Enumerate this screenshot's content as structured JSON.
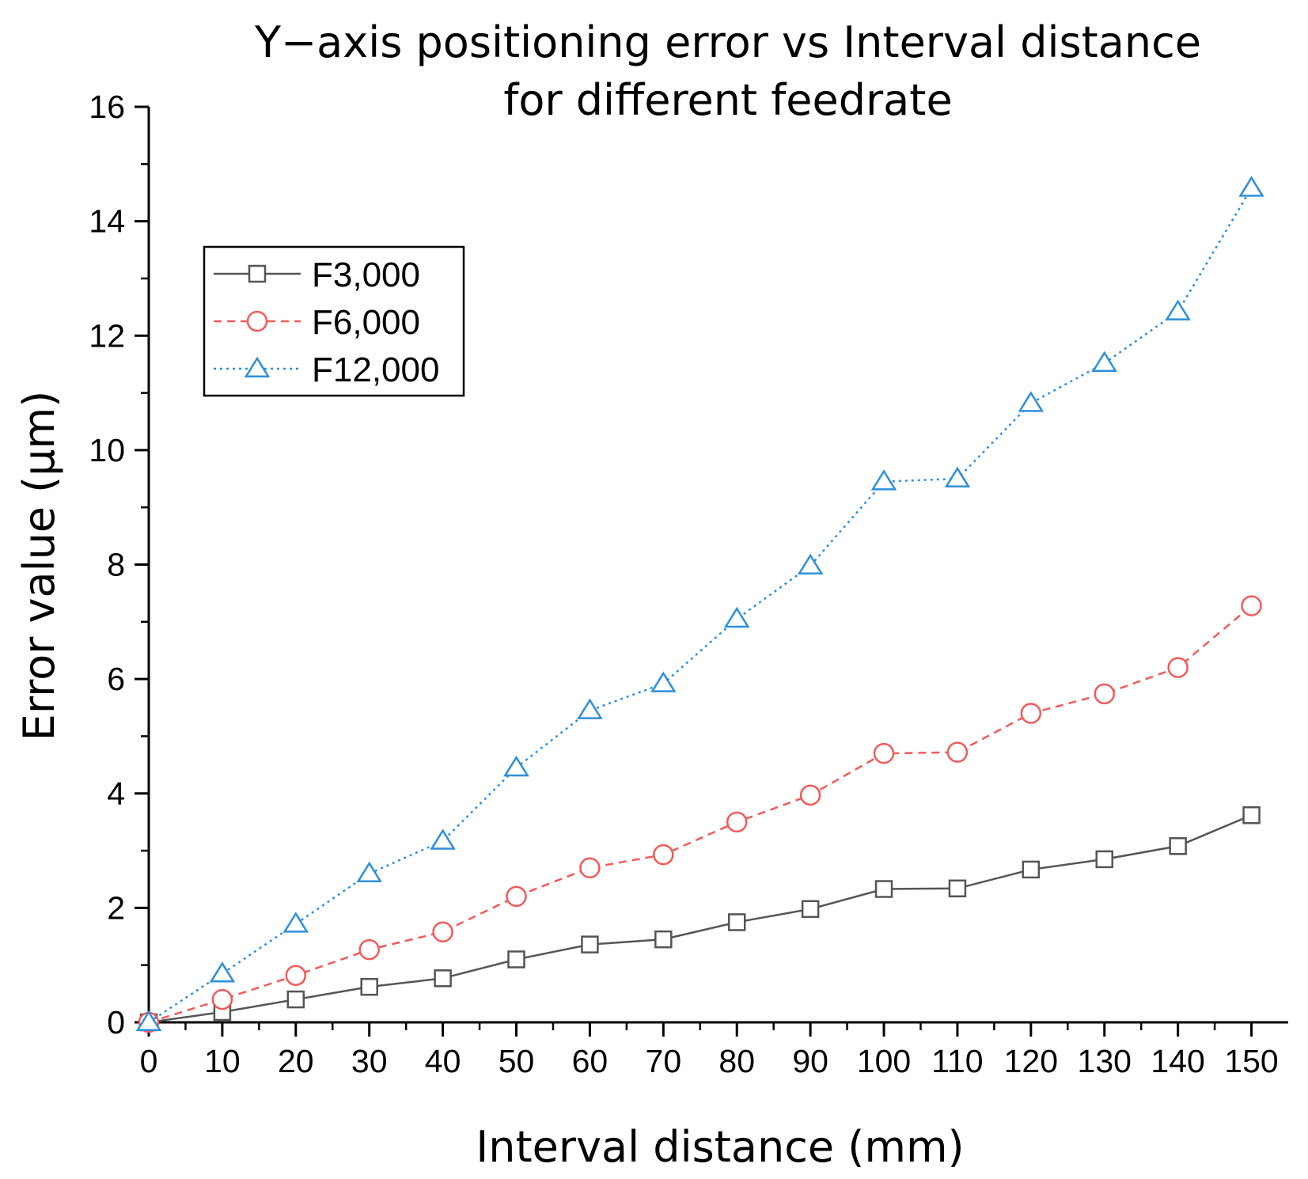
{
  "chart_data": {
    "type": "line",
    "title": "Y−axis positioning error vs Interval distance",
    "subtitle": "for different feedrate",
    "xlabel": "Interval distance (mm)",
    "ylabel": "Error value (µm)",
    "xlim": [
      0,
      155
    ],
    "ylim": [
      0,
      16
    ],
    "xticks": [
      0,
      10,
      20,
      30,
      40,
      50,
      60,
      70,
      80,
      90,
      100,
      110,
      120,
      130,
      140,
      150
    ],
    "yticks": [
      0,
      2,
      4,
      6,
      8,
      10,
      12,
      14,
      16
    ],
    "grid": false,
    "legend_position": "top-left",
    "x": [
      0,
      10,
      20,
      30,
      40,
      50,
      60,
      70,
      80,
      90,
      100,
      110,
      120,
      130,
      140,
      150
    ],
    "series": [
      {
        "name": "F3,000",
        "color": "#555555",
        "line_style": "solid",
        "marker": "square",
        "values": [
          0,
          0.18,
          0.4,
          0.62,
          0.77,
          1.1,
          1.36,
          1.45,
          1.75,
          1.98,
          2.33,
          2.34,
          2.67,
          2.85,
          3.08,
          3.62
        ]
      },
      {
        "name": "F6,000",
        "color": "#f25a5a",
        "line_style": "dashed",
        "marker": "circle",
        "values": [
          0,
          0.4,
          0.82,
          1.27,
          1.58,
          2.2,
          2.7,
          2.93,
          3.5,
          3.97,
          4.7,
          4.72,
          5.4,
          5.74,
          6.2,
          7.28
        ]
      },
      {
        "name": "F12,000",
        "color": "#2e8fdc",
        "line_style": "dotted",
        "marker": "triangle",
        "values": [
          0,
          0.85,
          1.72,
          2.6,
          3.17,
          4.45,
          5.45,
          5.92,
          7.05,
          7.98,
          9.45,
          9.5,
          10.82,
          11.52,
          12.42,
          14.58
        ]
      }
    ]
  }
}
